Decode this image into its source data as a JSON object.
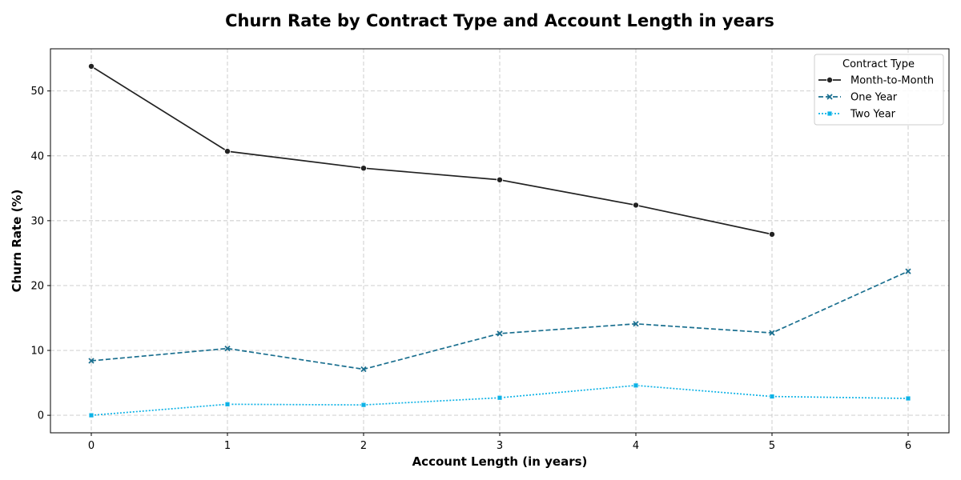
{
  "chart_data": {
    "type": "line",
    "title": "Churn Rate by Contract Type and Account Length in years",
    "xlabel": "Account Length (in years)",
    "ylabel": "Churn Rate (%)",
    "x": [
      0,
      1,
      2,
      3,
      4,
      5,
      6
    ],
    "xlim": [
      -0.3,
      6.3
    ],
    "ylim": [
      -2.7,
      56.5
    ],
    "xticks": [
      0,
      1,
      2,
      3,
      4,
      5,
      6
    ],
    "yticks": [
      0,
      10,
      20,
      30,
      40,
      50
    ],
    "grid": true,
    "legend": {
      "title": "Contract Type",
      "placement": "top-right"
    },
    "series": [
      {
        "name": "Month-to-Month",
        "color": "#222222",
        "marker": "circle",
        "dash": "solid",
        "x": [
          0,
          1,
          2,
          3,
          4,
          5
        ],
        "values": [
          53.8,
          40.7,
          38.1,
          36.3,
          32.4,
          27.9
        ]
      },
      {
        "name": "One Year",
        "color": "#1a6f8f",
        "marker": "x",
        "dash": "dashed",
        "x": [
          0,
          1,
          2,
          3,
          4,
          5,
          6
        ],
        "values": [
          8.4,
          10.3,
          7.1,
          12.6,
          14.1,
          12.7,
          22.2
        ]
      },
      {
        "name": "Two Year",
        "color": "#0db2e6",
        "marker": "square",
        "dash": "dotted",
        "x": [
          0,
          1,
          2,
          3,
          4,
          5,
          6
        ],
        "values": [
          0.0,
          1.7,
          1.6,
          2.7,
          4.6,
          2.9,
          2.6
        ]
      }
    ]
  }
}
